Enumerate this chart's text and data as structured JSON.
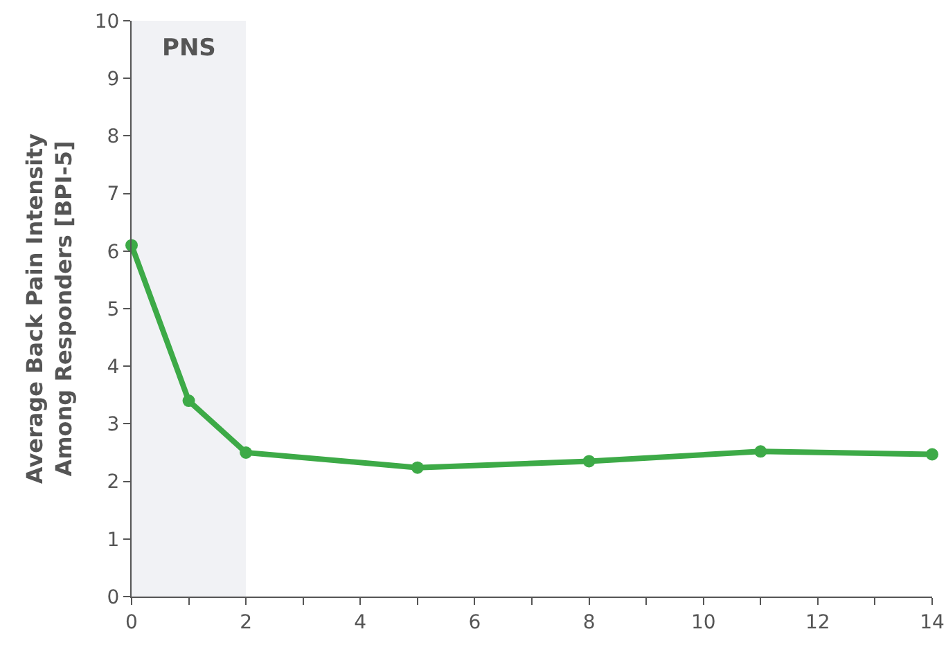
{
  "chart_data": {
    "type": "line",
    "ylabel": "Average Back Pain Intensity\nAmong Responders [BPI-5]",
    "x": [
      0,
      1,
      2,
      5,
      8,
      11,
      14
    ],
    "series": [
      {
        "color": "#3daa47",
        "values": [
          6.1,
          3.4,
          2.5,
          2.24,
          2.35,
          2.52,
          2.47
        ]
      }
    ],
    "xlim": [
      0,
      14
    ],
    "xticks": [
      0,
      {
        "value": 1,
        "label": null
      },
      2,
      {
        "value": 3,
        "label": null
      },
      4,
      {
        "value": 5,
        "label": null
      },
      6,
      {
        "value": 7,
        "label": null
      },
      8,
      {
        "value": 9,
        "label": null
      },
      10,
      {
        "value": 11,
        "label": null
      },
      12,
      {
        "value": 13,
        "label": null
      },
      14
    ],
    "ylim": [
      0,
      10
    ],
    "yticks": [
      0,
      1,
      2,
      3,
      4,
      5,
      6,
      7,
      8,
      9,
      10
    ],
    "bands": [
      {
        "axis": "x",
        "from": 0,
        "to": 2,
        "label": "PNS",
        "color": "#f1f2f5"
      }
    ],
    "grid": false,
    "marker": "circle",
    "line_style": "solid"
  }
}
